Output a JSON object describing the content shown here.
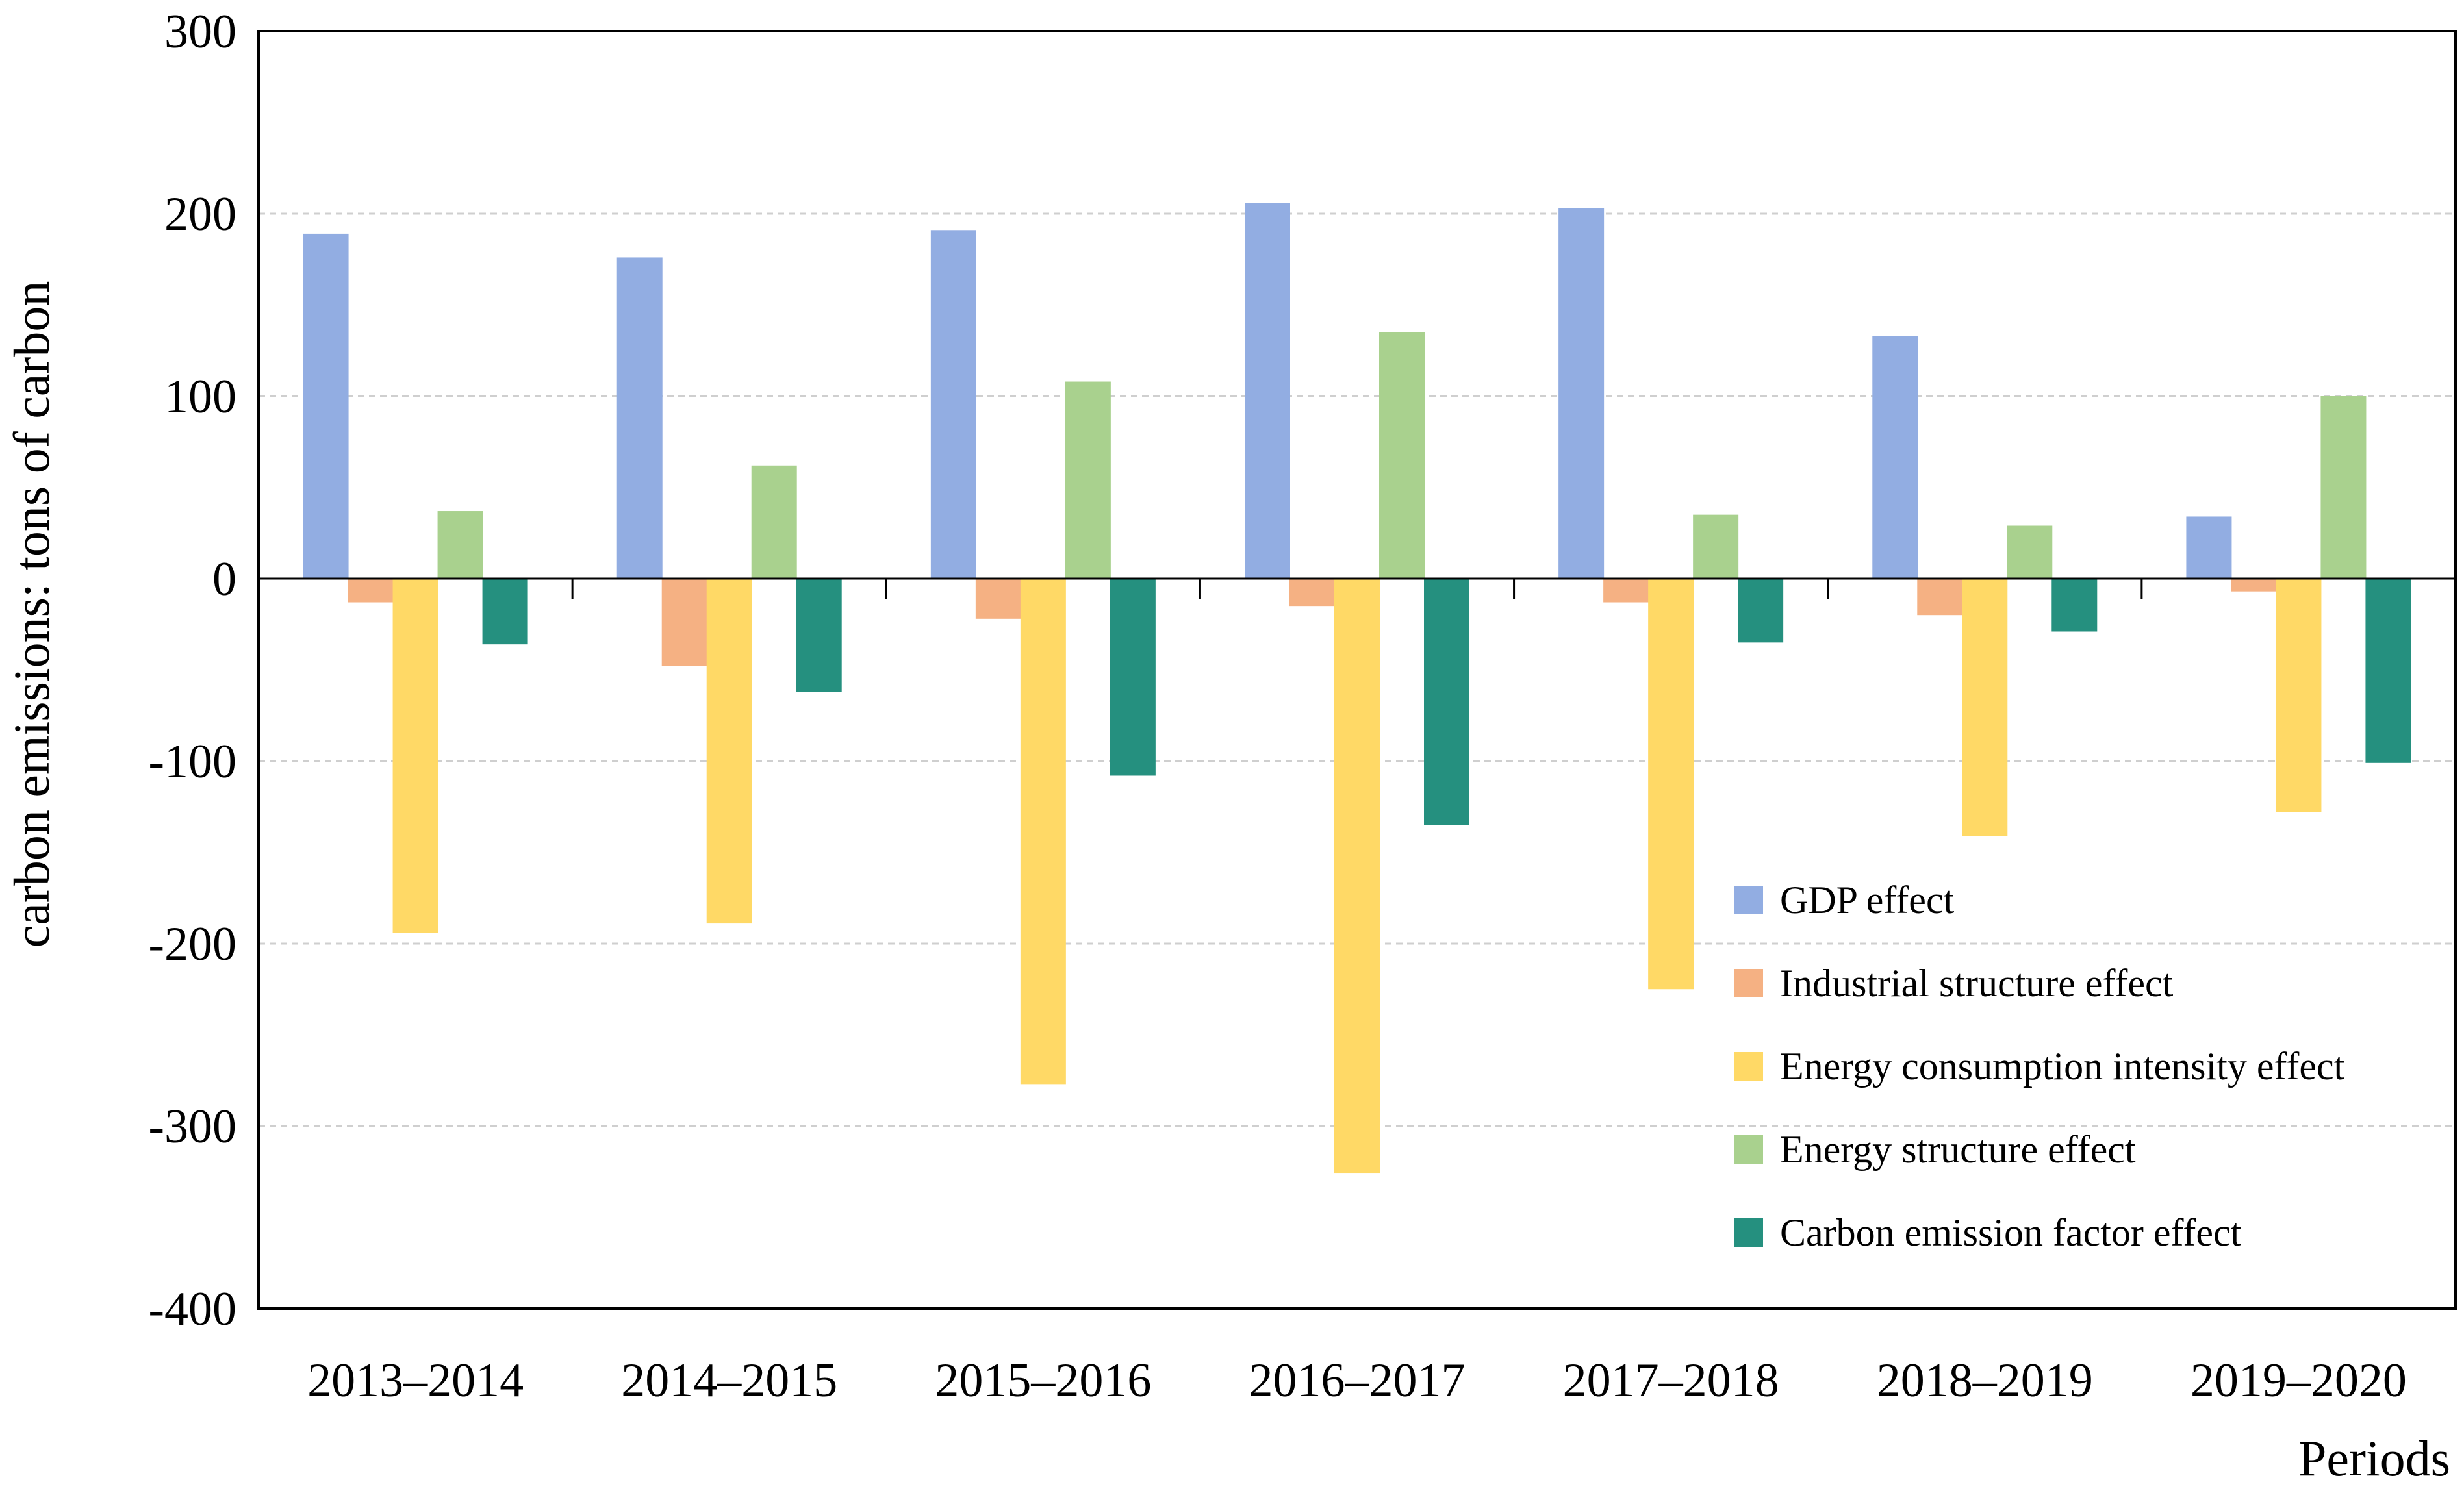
{
  "chart_data": {
    "type": "bar",
    "title": "",
    "xlabel": "Periods",
    "ylabel": "carbon emissions: tons of carbon",
    "ylim": [
      -400,
      300
    ],
    "yticks": [
      300,
      200,
      100,
      0,
      -100,
      -200,
      -300,
      -400
    ],
    "grid": true,
    "legend_position": "bottom-right",
    "categories": [
      "2013–2014",
      "2014–2015",
      "2015–2016",
      "2016–2017",
      "2017–2018",
      "2018–2019",
      "2019–2020"
    ],
    "series": [
      {
        "name": "GDP effect",
        "color": "#92ADE2",
        "values": [
          189,
          176,
          191,
          206,
          203,
          133,
          34
        ]
      },
      {
        "name": "Industrial structure effect",
        "color": "#F5B183",
        "values": [
          -13,
          -48,
          -22,
          -15,
          -13,
          -20,
          -7
        ]
      },
      {
        "name": "Energy consumption intensity effect",
        "color": "#FFD966",
        "values": [
          -194,
          -189,
          -277,
          -326,
          -225,
          -141,
          -128
        ]
      },
      {
        "name": "Energy structure effect",
        "color": "#A9D18E",
        "values": [
          37,
          62,
          108,
          135,
          35,
          29,
          100
        ]
      },
      {
        "name": "Carbon emission factor effect",
        "color": "#25907F",
        "values": [
          -36,
          -62,
          -108,
          -135,
          -35,
          -29,
          -101
        ]
      }
    ]
  }
}
